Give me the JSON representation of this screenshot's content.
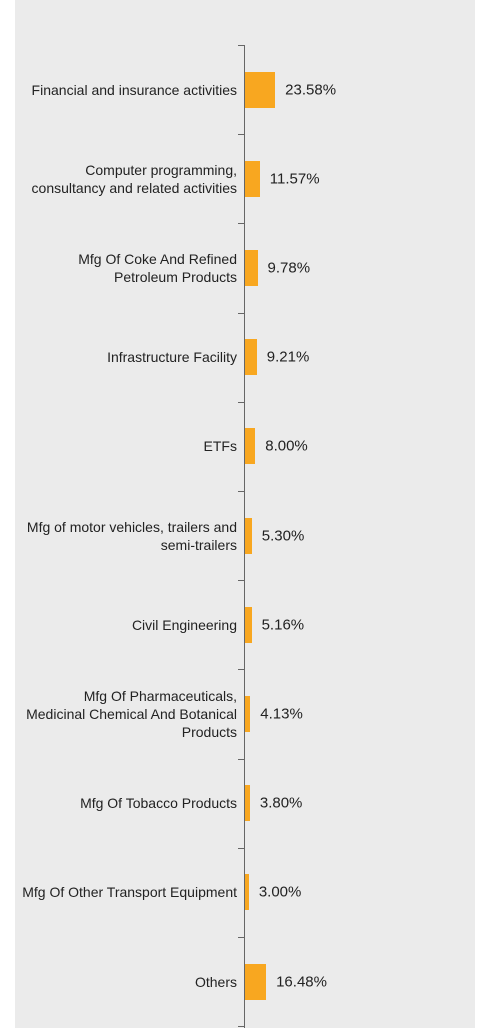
{
  "chart_data": {
    "type": "bar",
    "orientation": "horizontal",
    "categories": [
      "Financial and insurance activities",
      "Computer programming, consultancy and related activities",
      "Mfg Of Coke And Refined Petroleum Products",
      "Infrastructure Facility",
      "ETFs",
      "Mfg of motor vehicles, trailers and semi-trailers",
      "Civil Engineering",
      "Mfg Of Pharmaceuticals, Medicinal Chemical And Botanical Products",
      "Mfg Of Tobacco Products",
      "Mfg Of Other Transport Equipment",
      "Others"
    ],
    "values": [
      23.58,
      11.57,
      9.78,
      9.21,
      8.0,
      5.3,
      5.16,
      4.13,
      3.8,
      3.0,
      16.48
    ],
    "value_labels": [
      "23.58%",
      "11.57%",
      "9.78%",
      "9.21%",
      "8.00%",
      "5.30%",
      "5.16%",
      "4.13%",
      "3.80%",
      "3.00%",
      "16.48%"
    ],
    "color": "#f8a720"
  }
}
